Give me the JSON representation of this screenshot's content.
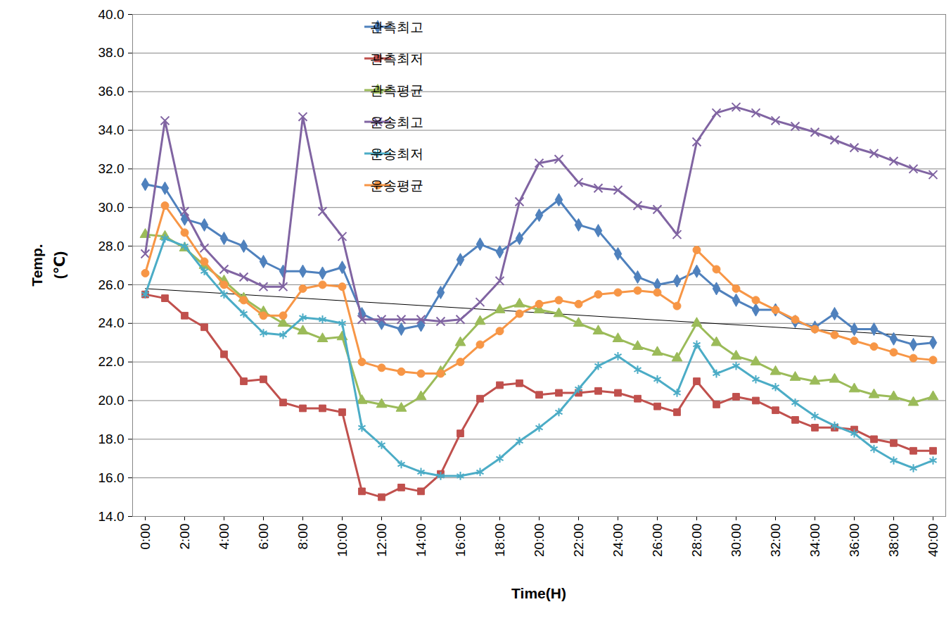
{
  "chart_data": {
    "type": "line",
    "xlabel": "Time(H)",
    "ylabel": "Temp.\n(℃)",
    "categories": [
      "0:00",
      null,
      "2:00",
      null,
      "4:00",
      null,
      "6:00",
      null,
      "8:00",
      null,
      "10:00",
      null,
      "12:00",
      null,
      "14:00",
      null,
      "16:00",
      null,
      "18:00",
      null,
      "20:00",
      null,
      "22:00",
      null,
      "24:00",
      null,
      "26:00",
      null,
      "28:00",
      null,
      "30:00",
      null,
      "32:00",
      null,
      "34:00",
      null,
      "36:00",
      null,
      "38:00",
      null,
      "40:00"
    ],
    "ylim": [
      14,
      40
    ],
    "yticks": [
      {
        "value": 14,
        "label": "14.0"
      },
      {
        "value": 16,
        "label": "16.0"
      },
      {
        "value": 18,
        "label": "18.0"
      },
      {
        "value": 20,
        "label": "20.0"
      },
      {
        "value": 22,
        "label": "22.0"
      },
      {
        "value": 24,
        "label": "24.0"
      },
      {
        "value": 26,
        "label": "26.0"
      },
      {
        "value": 28,
        "label": "28.0"
      },
      {
        "value": 30,
        "label": "30.0"
      },
      {
        "value": 32,
        "label": "32.0"
      },
      {
        "value": 34,
        "label": "34.0"
      },
      {
        "value": 36,
        "label": "36.0"
      },
      {
        "value": 38,
        "label": "38.0"
      },
      {
        "value": 40,
        "label": "40.0"
      }
    ],
    "grid": true,
    "legend": "top",
    "series": [
      {
        "name": "관측최고",
        "color": "#4f81bd",
        "marker": "diamond",
        "values": [
          31.2,
          31.0,
          29.4,
          29.1,
          28.4,
          28.0,
          27.2,
          26.7,
          26.7,
          26.6,
          26.9,
          24.5,
          24.0,
          23.7,
          23.9,
          25.6,
          27.3,
          28.1,
          27.7,
          28.4,
          29.6,
          30.4,
          29.1,
          28.8,
          27.6,
          26.4,
          26.0,
          26.2,
          26.7,
          25.8,
          25.2,
          24.7,
          24.7,
          24.1,
          23.8,
          24.5,
          23.7,
          23.7,
          23.2,
          22.9,
          23.0
        ]
      },
      {
        "name": "관측최저",
        "color": "#c0504d",
        "marker": "square",
        "values": [
          25.5,
          25.3,
          24.4,
          23.8,
          22.4,
          21.0,
          21.1,
          19.9,
          19.6,
          19.6,
          19.4,
          15.3,
          15.0,
          15.5,
          15.3,
          16.2,
          18.3,
          20.1,
          20.8,
          20.9,
          20.3,
          20.4,
          20.4,
          20.5,
          20.4,
          20.1,
          19.7,
          19.4,
          21.0,
          19.8,
          20.2,
          20.0,
          19.5,
          19.0,
          18.6,
          18.6,
          18.5,
          18.0,
          17.8,
          17.4,
          17.4
        ]
      },
      {
        "name": "관측평균",
        "color": "#9bbb59",
        "marker": "triangle",
        "values": [
          28.6,
          28.5,
          27.9,
          27.0,
          26.2,
          25.3,
          24.6,
          24.0,
          23.6,
          23.2,
          23.3,
          20.0,
          19.8,
          19.6,
          20.2,
          21.5,
          23.0,
          24.1,
          24.7,
          25.0,
          24.7,
          24.5,
          24.0,
          23.6,
          23.2,
          22.8,
          22.5,
          22.2,
          24.0,
          23.0,
          22.3,
          22.0,
          21.5,
          21.2,
          21.0,
          21.1,
          20.6,
          20.3,
          20.2,
          19.9,
          20.2
        ]
      },
      {
        "name": "운송최고",
        "color": "#8064a2",
        "marker": "times",
        "values": [
          27.6,
          34.5,
          29.8,
          27.9,
          26.8,
          26.4,
          25.9,
          25.9,
          34.7,
          29.8,
          28.5,
          24.2,
          24.2,
          24.2,
          24.2,
          24.1,
          24.2,
          25.1,
          26.2,
          30.3,
          32.3,
          32.5,
          31.3,
          31.0,
          30.9,
          30.1,
          29.9,
          28.6,
          33.4,
          34.9,
          35.2,
          34.9,
          34.5,
          34.2,
          33.9,
          33.5,
          33.1,
          32.8,
          32.4,
          32.0,
          31.7
        ]
      },
      {
        "name": "운송최저",
        "color": "#4bacc6",
        "marker": "asterisk",
        "values": [
          25.5,
          28.4,
          28.0,
          26.7,
          25.5,
          24.5,
          23.5,
          23.4,
          24.3,
          24.2,
          24.0,
          18.6,
          17.7,
          16.7,
          16.3,
          16.1,
          16.1,
          16.3,
          17.0,
          17.9,
          18.6,
          19.4,
          20.6,
          21.8,
          22.3,
          21.6,
          21.1,
          20.4,
          22.9,
          21.4,
          21.8,
          21.1,
          20.7,
          19.9,
          19.2,
          18.7,
          18.3,
          17.5,
          16.9,
          16.5,
          16.9
        ]
      },
      {
        "name": "운송평균",
        "color": "#f79646",
        "marker": "circle",
        "values": [
          26.6,
          30.1,
          28.7,
          27.2,
          26.0,
          25.2,
          24.4,
          24.4,
          25.8,
          26.0,
          25.9,
          22.0,
          21.7,
          21.5,
          21.4,
          21.4,
          22.0,
          22.9,
          23.6,
          24.5,
          25.0,
          25.2,
          25.0,
          25.5,
          25.6,
          25.7,
          25.6,
          24.9,
          27.8,
          26.8,
          25.8,
          25.2,
          24.7,
          24.2,
          23.7,
          23.4,
          23.1,
          22.8,
          22.5,
          22.2,
          22.1
        ]
      }
    ],
    "trendline": {
      "color": "#000000",
      "values": [
        25.8,
        23.3
      ]
    }
  }
}
